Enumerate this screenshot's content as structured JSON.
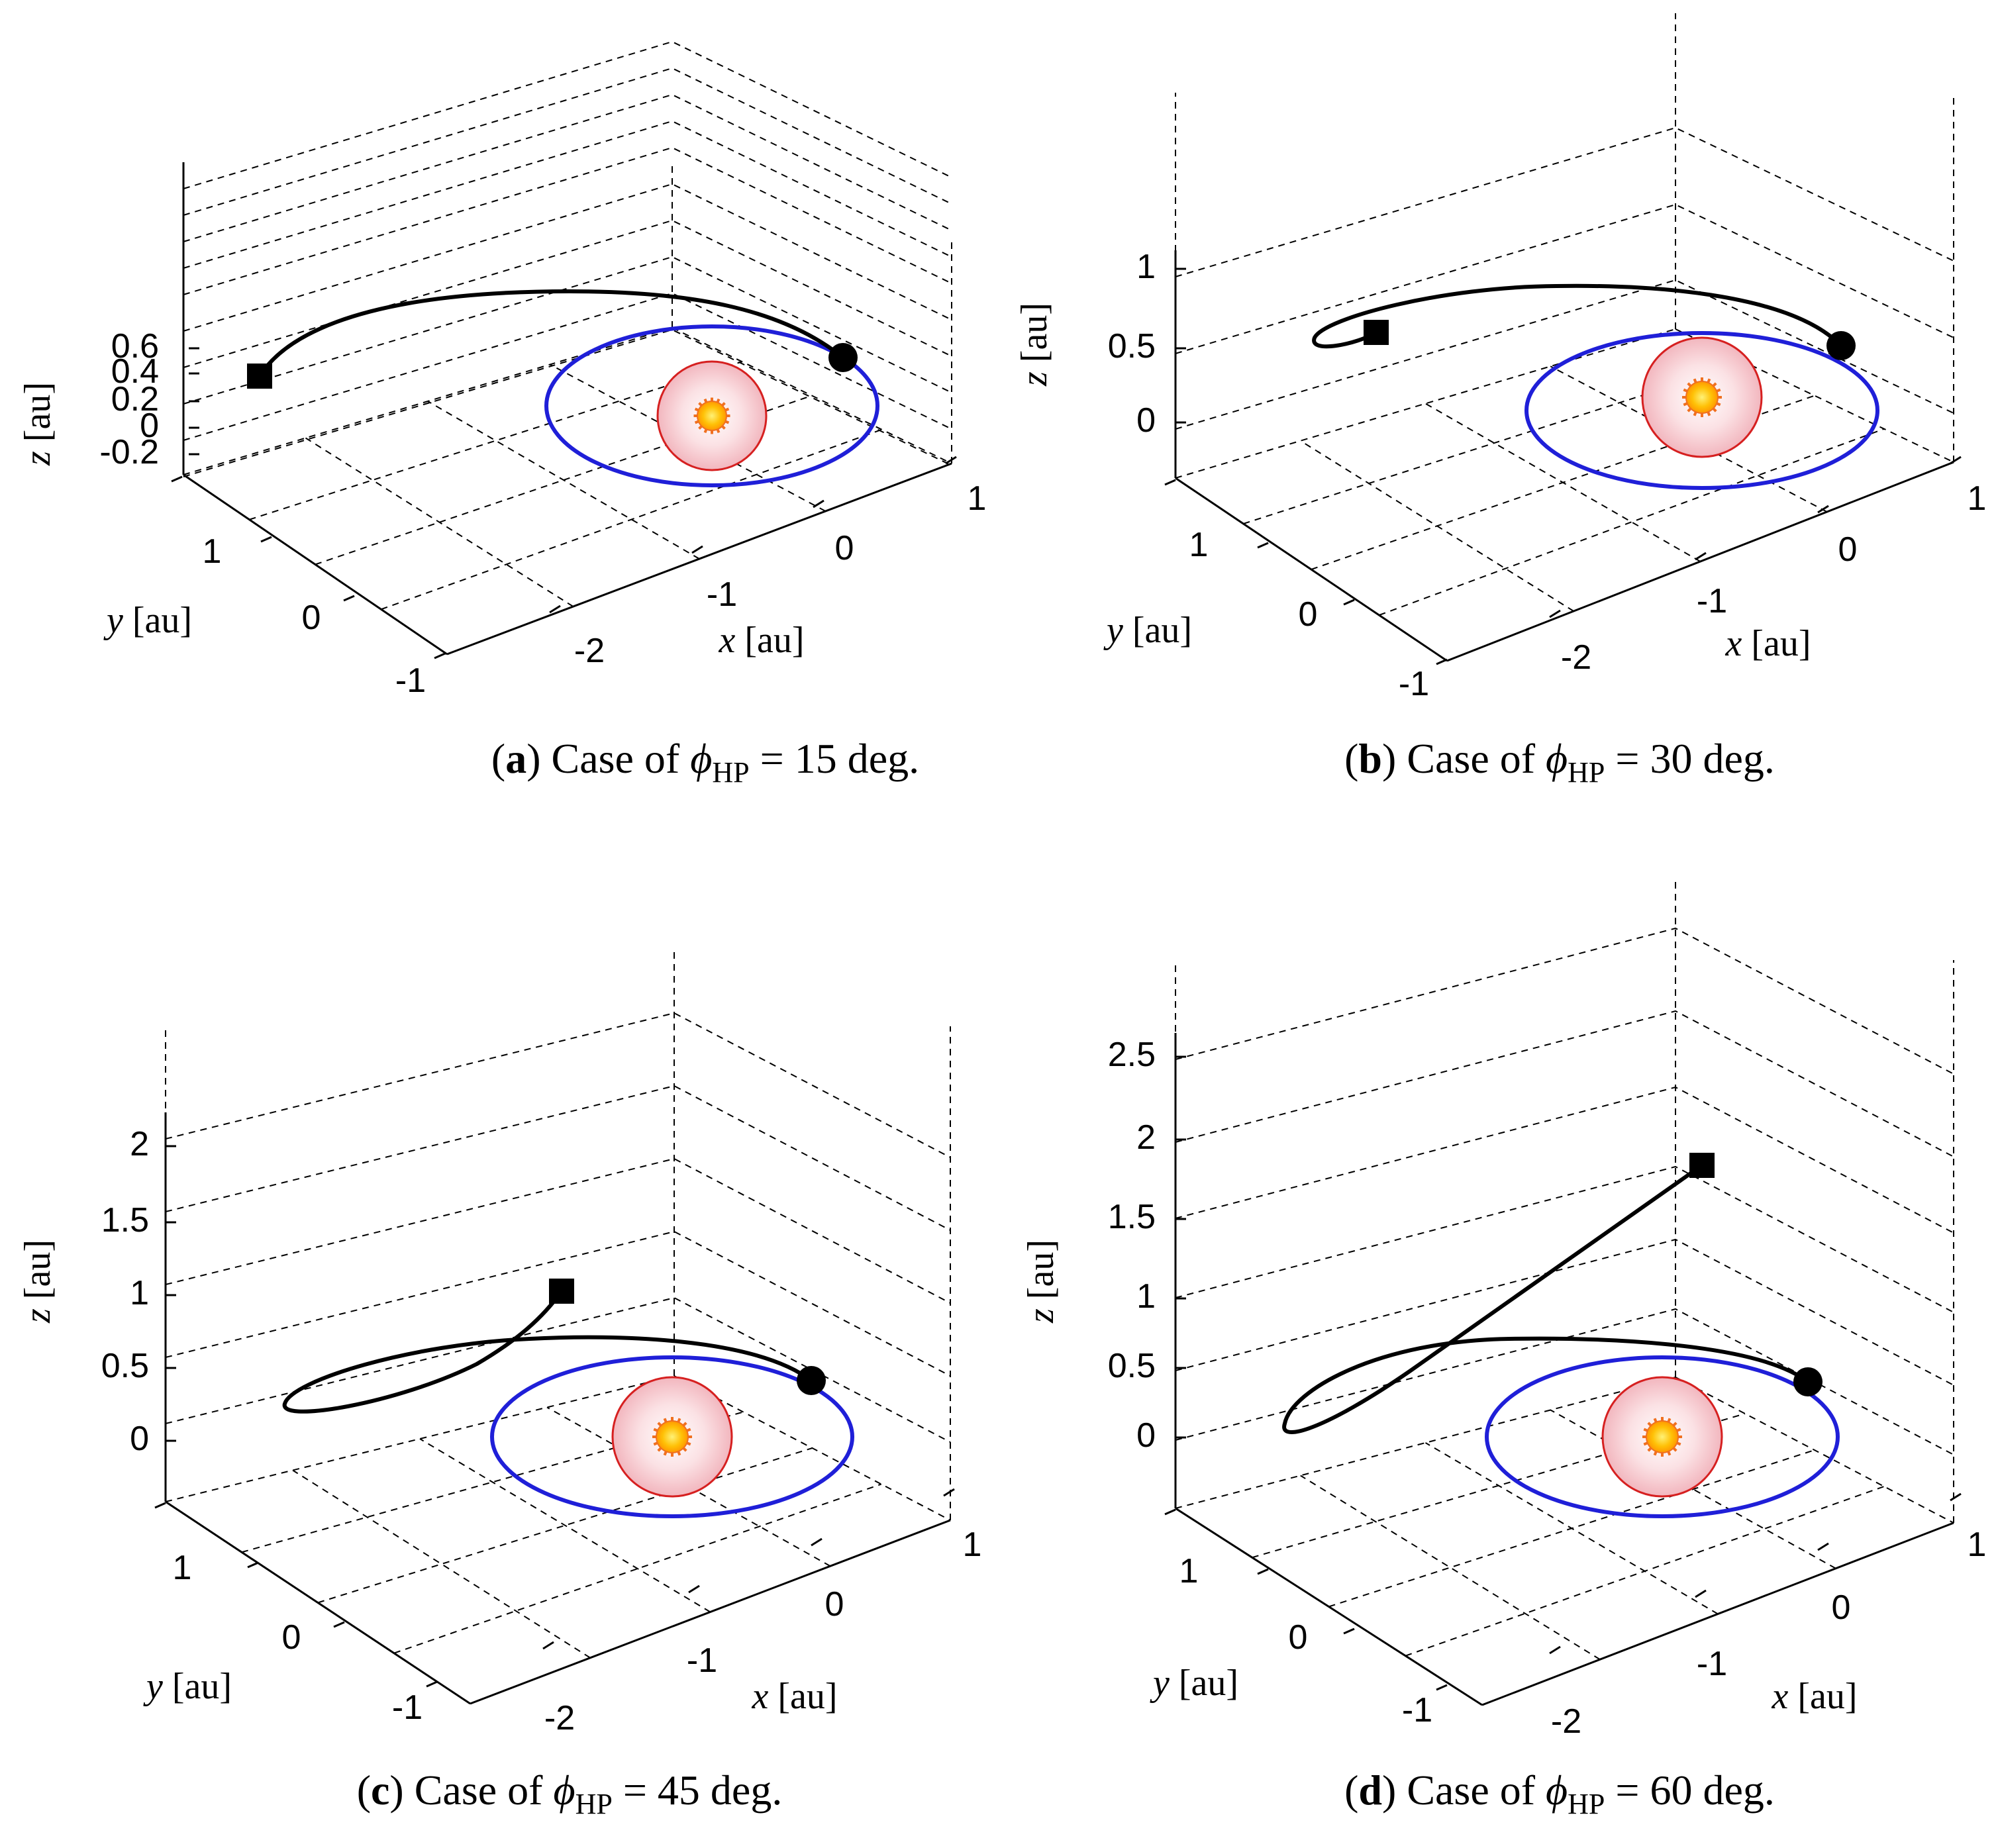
{
  "chart_data": [
    {
      "type": "line3d",
      "panel_label": "a",
      "caption": {
        "prefix": "Case of ",
        "symbol": "ϕ",
        "sub": "HP",
        "suffix": " = 15 deg."
      },
      "axes": {
        "xlabel": {
          "var": "x",
          "unit": "[au]"
        },
        "ylabel": {
          "var": "y",
          "unit": "[au]"
        },
        "zlabel": {
          "var": "z",
          "unit": "[au]"
        },
        "xticks": [
          "-2",
          "-1",
          "0",
          "1"
        ],
        "yticks": [
          "-1",
          "0",
          "1"
        ],
        "zticks": [
          "-0.2",
          "0",
          "0.2",
          "0.4",
          "0.6"
        ],
        "grid": true
      },
      "series": [
        {
          "name": "Earth orbit",
          "color": "#1f1fd8"
        },
        {
          "name": "Transfer trajectory",
          "color": "#000000"
        }
      ],
      "markers": [
        {
          "name": "Departure",
          "shape": "circle"
        },
        {
          "name": "Arrival",
          "shape": "square"
        }
      ],
      "sun": {
        "name": "Sun",
        "zone_color": "#f6c9cf",
        "core_color": "#ffb300",
        "ray_color": "#f07020"
      }
    },
    {
      "type": "line3d",
      "panel_label": "b",
      "caption": {
        "prefix": "Case of ",
        "symbol": "ϕ",
        "sub": "HP",
        "suffix": " = 30 deg."
      },
      "axes": {
        "xlabel": {
          "var": "x",
          "unit": "[au]"
        },
        "ylabel": {
          "var": "y",
          "unit": "[au]"
        },
        "zlabel": {
          "var": "z",
          "unit": "[au]"
        },
        "xticks": [
          "-2",
          "-1",
          "0",
          "1"
        ],
        "yticks": [
          "-1",
          "0",
          "1"
        ],
        "zticks": [
          "0",
          "0.5",
          "1"
        ],
        "grid": true
      },
      "series": [
        {
          "name": "Earth orbit",
          "color": "#1f1fd8"
        },
        {
          "name": "Transfer trajectory",
          "color": "#000000"
        }
      ],
      "markers": [
        {
          "name": "Departure",
          "shape": "circle"
        },
        {
          "name": "Arrival",
          "shape": "square"
        }
      ],
      "sun": {
        "name": "Sun",
        "zone_color": "#f6c9cf",
        "core_color": "#ffb300",
        "ray_color": "#f07020"
      }
    },
    {
      "type": "line3d",
      "panel_label": "c",
      "caption": {
        "prefix": "Case of ",
        "symbol": "ϕ",
        "sub": "HP",
        "suffix": " = 45 deg."
      },
      "axes": {
        "xlabel": {
          "var": "x",
          "unit": "[au]"
        },
        "ylabel": {
          "var": "y",
          "unit": "[au]"
        },
        "zlabel": {
          "var": "z",
          "unit": "[au]"
        },
        "xticks": [
          "-2",
          "-1",
          "0",
          "1"
        ],
        "yticks": [
          "-1",
          "0",
          "1"
        ],
        "zticks": [
          "0",
          "0.5",
          "1",
          "1.5",
          "2"
        ],
        "grid": true
      },
      "series": [
        {
          "name": "Earth orbit",
          "color": "#1f1fd8"
        },
        {
          "name": "Transfer trajectory",
          "color": "#000000"
        }
      ],
      "markers": [
        {
          "name": "Departure",
          "shape": "circle"
        },
        {
          "name": "Arrival",
          "shape": "square"
        }
      ],
      "sun": {
        "name": "Sun",
        "zone_color": "#f6c9cf",
        "core_color": "#ffb300",
        "ray_color": "#f07020"
      }
    },
    {
      "type": "line3d",
      "panel_label": "d",
      "caption": {
        "prefix": "Case of ",
        "symbol": "ϕ",
        "sub": "HP",
        "suffix": " = 60 deg."
      },
      "axes": {
        "xlabel": {
          "var": "x",
          "unit": "[au]"
        },
        "ylabel": {
          "var": "y",
          "unit": "[au]"
        },
        "zlabel": {
          "var": "z",
          "unit": "[au]"
        },
        "xticks": [
          "-2",
          "-1",
          "0",
          "1"
        ],
        "yticks": [
          "-1",
          "0",
          "1"
        ],
        "zticks": [
          "0",
          "0.5",
          "1",
          "1.5",
          "2",
          "2.5"
        ],
        "grid": true
      },
      "series": [
        {
          "name": "Earth orbit",
          "color": "#1f1fd8"
        },
        {
          "name": "Transfer trajectory",
          "color": "#000000"
        }
      ],
      "markers": [
        {
          "name": "Departure",
          "shape": "circle"
        },
        {
          "name": "Arrival",
          "shape": "square"
        }
      ],
      "sun": {
        "name": "Sun",
        "zone_color": "#f6c9cf",
        "core_color": "#ffb300",
        "ray_color": "#f07020"
      }
    }
  ]
}
